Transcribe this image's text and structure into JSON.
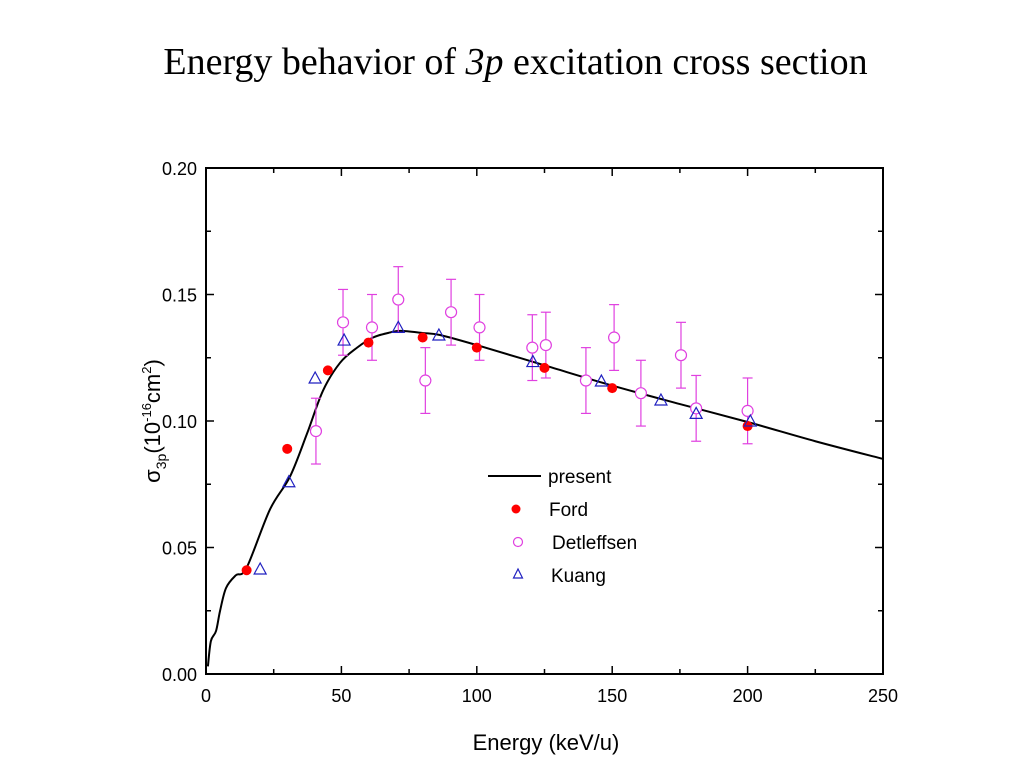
{
  "page": {
    "title_prefix": "Energy behavior of ",
    "title_italic": "3p",
    "title_suffix": " excitation cross section"
  },
  "chart_data": {
    "type": "scatter",
    "title": "Energy behavior of 3p excitation cross section",
    "xlabel": "Energy (keV/u)",
    "ylabel": {
      "symbol": "σ",
      "subscript": "3p",
      "open": "(10",
      "exp1": "-16",
      "unit": "cm",
      "exp2": "2",
      "close": ")"
    },
    "xlim": [
      0,
      250
    ],
    "ylim": [
      0.0,
      0.2
    ],
    "xticks": [
      0,
      50,
      100,
      150,
      200,
      250
    ],
    "xtick_labels": [
      "0",
      "50",
      "100",
      "150",
      "200",
      "250"
    ],
    "x_minor_ticks": [
      25,
      75,
      125,
      175,
      225
    ],
    "yticks": [
      0.0,
      0.05,
      0.1,
      0.15,
      0.2
    ],
    "ytick_labels": [
      "0.00",
      "0.05",
      "0.10",
      "0.15",
      "0.20"
    ],
    "y_minor_ticks": [
      0.025,
      0.075,
      0.125,
      0.175
    ],
    "grid": false,
    "legend_position": "center-right",
    "series": [
      {
        "name": "present",
        "kind": "line",
        "color": "#000000",
        "x": [
          0.7,
          1.8,
          3.7,
          5.2,
          7.4,
          11,
          15,
          23.6,
          31,
          37.3,
          43.2,
          49.5,
          55.8,
          61.7,
          68,
          72,
          80,
          86.4,
          100,
          125,
          150,
          175,
          200,
          225,
          250
        ],
        "y": [
          0.003,
          0.013,
          0.017,
          0.025,
          0.034,
          0.039,
          0.042,
          0.065,
          0.078,
          0.095,
          0.112,
          0.123,
          0.129,
          0.133,
          0.135,
          0.1356,
          0.1348,
          0.134,
          0.13,
          0.122,
          0.114,
          0.1067,
          0.0996,
          0.092,
          0.085
        ]
      },
      {
        "name": "Ford",
        "kind": "filled-circle",
        "color": "#ff0000",
        "x": [
          15,
          30,
          45,
          60,
          80,
          100,
          125,
          150,
          200
        ],
        "y": [
          0.041,
          0.089,
          0.12,
          0.131,
          0.133,
          0.129,
          0.121,
          0.113,
          0.098
        ]
      },
      {
        "name": "Detleffsen",
        "kind": "open-circle-errorbar",
        "color": "#e040e0",
        "x": [
          40.6,
          50.6,
          61.3,
          71,
          81,
          90.5,
          101,
          120.5,
          125.5,
          140.3,
          150.7,
          160.6,
          175.4,
          181,
          200
        ],
        "y": [
          0.096,
          0.139,
          0.137,
          0.148,
          0.116,
          0.143,
          0.137,
          0.129,
          0.13,
          0.116,
          0.133,
          0.111,
          0.126,
          0.105,
          0.104
        ],
        "err": [
          0.013,
          0.013,
          0.013,
          0.013,
          0.013,
          0.013,
          0.013,
          0.013,
          0.013,
          0.013,
          0.013,
          0.013,
          0.013,
          0.013,
          0.013
        ]
      },
      {
        "name": "Kuang",
        "kind": "open-triangle",
        "color": "#2020c0",
        "x": [
          20,
          30.6,
          40.3,
          51,
          71,
          86,
          120.7,
          146,
          168,
          181,
          201
        ],
        "y": [
          0.0415,
          0.076,
          0.117,
          0.132,
          0.137,
          0.134,
          0.1235,
          0.1158,
          0.1083,
          0.103,
          0.1
        ]
      }
    ]
  }
}
